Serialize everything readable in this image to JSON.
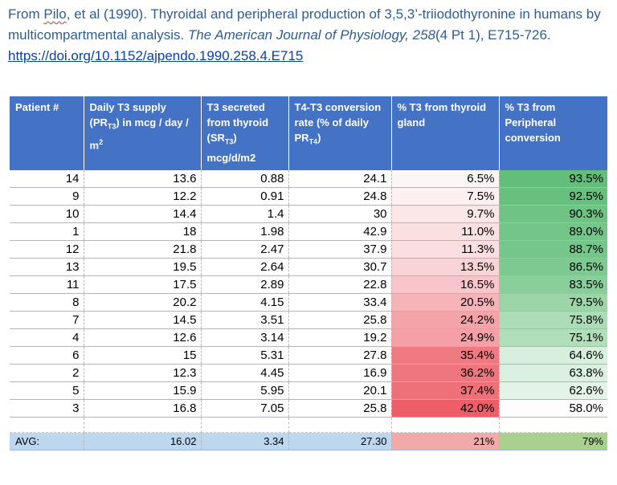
{
  "citation": {
    "prefix": "From ",
    "author": "Pilo",
    "mid": ", et al (1990). Thyroidal and peripheral production of 3,5,3’-triiodothyronine in humans by multicompartmental analysis. ",
    "journal": "The American Journal of Physiology, 258",
    "suffix": "(4 Pt 1), E715-726. ",
    "doi": "https://doi.org/10.1152/ajpendo.1990.258.4.E715"
  },
  "table": {
    "headers": {
      "patient": "Patient #",
      "supply_a": "Daily T3 supply (PR",
      "supply_sub": "T3",
      "supply_b": ") in mcg / day / m",
      "supply_sup": "2",
      "secreted_a": "T3 secreted from thyroid (SR",
      "secreted_sub": "T3",
      "secreted_b": ") mcg/d/m2",
      "conversion_a": "T4-T3 conversion rate (% of daily PR",
      "conversion_sub": "T4",
      "conversion_b": ")",
      "thyroid": "% T3 from thyroid gland",
      "peripheral": "% T3 from Peripheral conversion"
    },
    "rows": [
      {
        "patient": "14",
        "supply": "13.6",
        "secreted": "0.88",
        "conversion": "24.1",
        "thyroid": "6.5%",
        "peripheral": "93.5%",
        "tcolor": "#fdf6f6",
        "pcolor": "#63be7b"
      },
      {
        "patient": "9",
        "supply": "12.2",
        "secreted": "0.91",
        "conversion": "24.8",
        "thyroid": "7.5%",
        "peripheral": "92.5%",
        "tcolor": "#fcf0f1",
        "pcolor": "#67c07e"
      },
      {
        "patient": "10",
        "supply": "14.4",
        "secreted": "1.4",
        "conversion": "30",
        "thyroid": "9.7%",
        "peripheral": "90.3%",
        "tcolor": "#fbe6e8",
        "pcolor": "#6ec385"
      },
      {
        "patient": "1",
        "supply": "18",
        "secreted": "1.98",
        "conversion": "42.9",
        "thyroid": "11.0%",
        "peripheral": "89.0%",
        "tcolor": "#fbe0e2",
        "pcolor": "#73c589"
      },
      {
        "patient": "12",
        "supply": "21.8",
        "secreted": "2.47",
        "conversion": "37.9",
        "thyroid": "11.3%",
        "peripheral": "88.7%",
        "tcolor": "#fadee1",
        "pcolor": "#75c68b"
      },
      {
        "patient": "13",
        "supply": "19.5",
        "secreted": "2.64",
        "conversion": "30.7",
        "thyroid": "13.5%",
        "peripheral": "86.5%",
        "tcolor": "#f9d4d7",
        "pcolor": "#7ec991"
      },
      {
        "patient": "11",
        "supply": "17.5",
        "secreted": "2.89",
        "conversion": "22.8",
        "thyroid": "16.5%",
        "peripheral": "83.5%",
        "tcolor": "#f8c6ca",
        "pcolor": "#8ace9b"
      },
      {
        "patient": "8",
        "supply": "20.2",
        "secreted": "4.15",
        "conversion": "33.4",
        "thyroid": "20.5%",
        "peripheral": "79.5%",
        "tcolor": "#f6b4b9",
        "pcolor": "#9bd5a8"
      },
      {
        "patient": "7",
        "supply": "14.5",
        "secreted": "3.51",
        "conversion": "25.8",
        "thyroid": "24.2%",
        "peripheral": "75.8%",
        "tcolor": "#f4a3a9",
        "pcolor": "#acdcb7"
      },
      {
        "patient": "4",
        "supply": "12.6",
        "secreted": "3.14",
        "conversion": "19.2",
        "thyroid": "24.9%",
        "peripheral": "75.1%",
        "tcolor": "#f4a0a6",
        "pcolor": "#b0ddba"
      },
      {
        "patient": "6",
        "supply": "15",
        "secreted": "5.31",
        "conversion": "27.8",
        "thyroid": "35.4%",
        "peripheral": "64.6%",
        "tcolor": "#f07a82",
        "pcolor": "#d9efde"
      },
      {
        "patient": "2",
        "supply": "12.3",
        "secreted": "4.45",
        "conversion": "16.9",
        "thyroid": "36.2%",
        "peripheral": "63.8%",
        "tcolor": "#ef767e",
        "pcolor": "#dcf0e1"
      },
      {
        "patient": "5",
        "supply": "15.9",
        "secreted": "5.95",
        "conversion": "20.1",
        "thyroid": "37.4%",
        "peripheral": "62.6%",
        "tcolor": "#ee7079",
        "pcolor": "#e3f3e7"
      },
      {
        "patient": "3",
        "supply": "16.8",
        "secreted": "7.05",
        "conversion": "25.8",
        "thyroid": "42.0%",
        "peripheral": "58.0%",
        "tcolor": "#ec5f69",
        "pcolor": "#fcfdfc"
      }
    ],
    "avg": {
      "label": "AVG:",
      "supply": "16.02",
      "secreted": "3.34",
      "conversion": "27.30",
      "thyroid": "21%",
      "peripheral": "79%"
    }
  }
}
